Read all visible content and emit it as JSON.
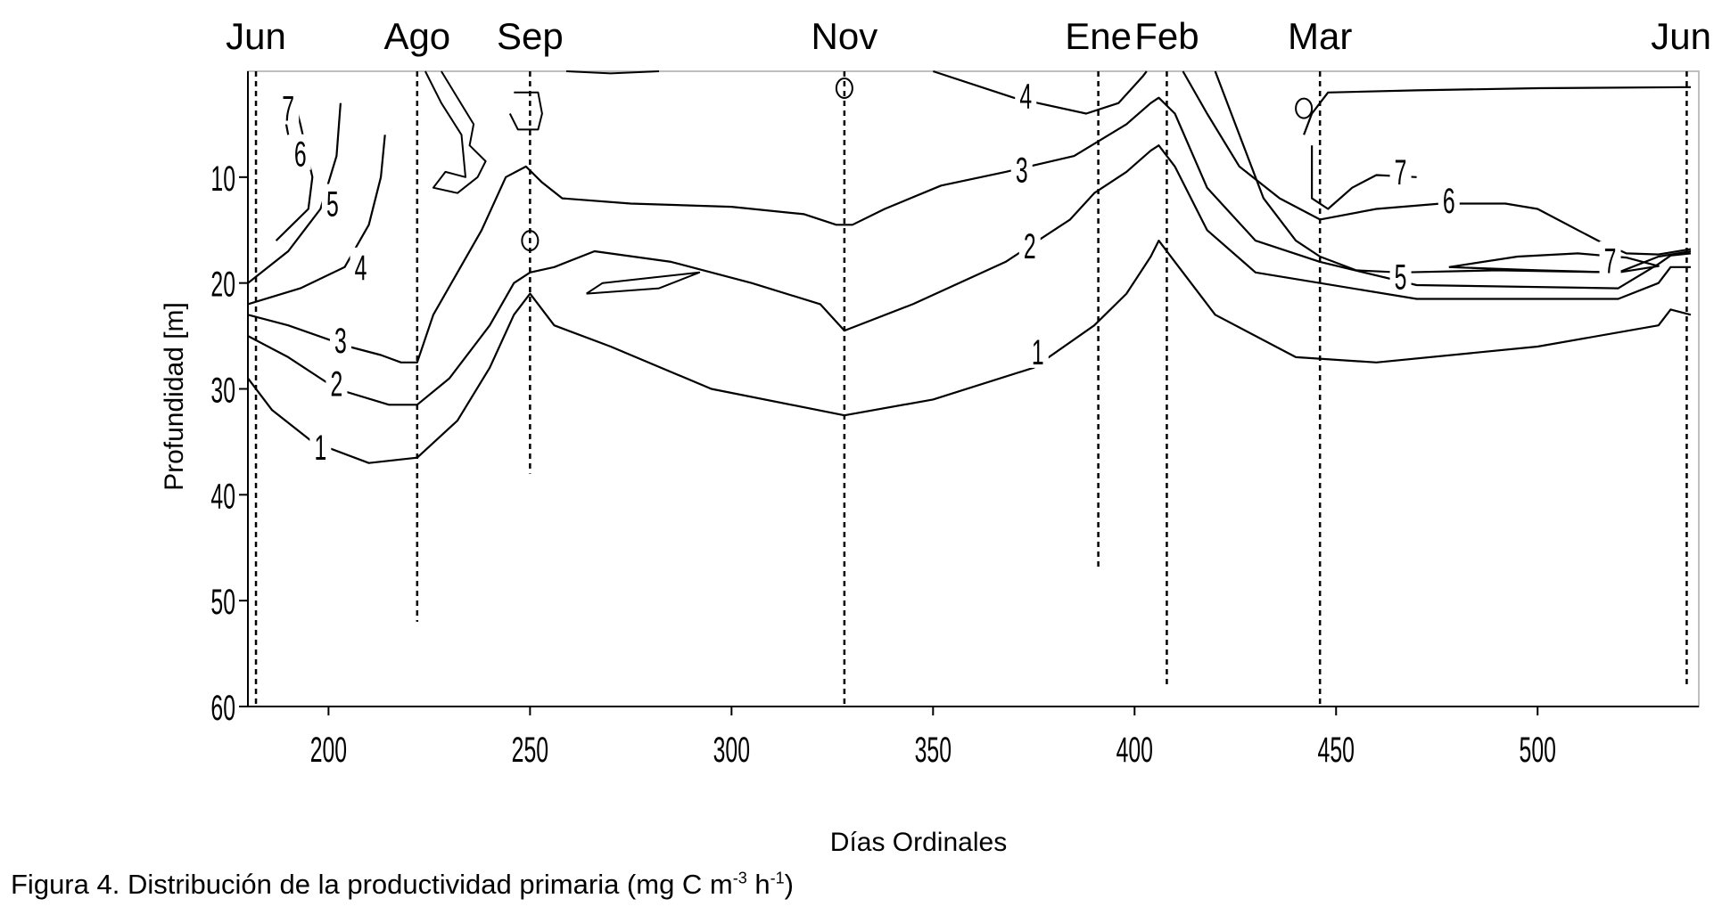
{
  "chart_data": {
    "type": "contour",
    "xlabel": "Días Ordinales",
    "ylabel": "Profundidad [m]",
    "xlim": [
      180,
      540
    ],
    "ylim": [
      60,
      0
    ],
    "y_reversed": true,
    "xticks": [
      200,
      250,
      300,
      350,
      400,
      450,
      500
    ],
    "yticks": [
      10,
      20,
      30,
      40,
      50,
      60
    ],
    "months": [
      {
        "label": "Jun",
        "day": 182,
        "depth_max": 60
      },
      {
        "label": "Ago",
        "day": 222,
        "depth_max": 52
      },
      {
        "label": "Sep",
        "day": 250,
        "depth_max": 38
      },
      {
        "label": "Nov",
        "day": 328,
        "depth_max": 60
      },
      {
        "label": "Ene",
        "day": 391,
        "depth_max": 47
      },
      {
        "label": "Feb",
        "day": 408,
        "depth_max": 58
      },
      {
        "label": "Mar",
        "day": 446,
        "depth_max": 60
      },
      {
        "label": "Jun",
        "day": 537,
        "depth_max": 58
      }
    ],
    "contours": [
      {
        "level": 1,
        "label_text": "1",
        "points": [
          [
            180,
            29
          ],
          [
            186,
            32
          ],
          [
            196,
            35
          ],
          [
            210,
            37
          ],
          [
            222,
            36.5
          ],
          [
            232,
            33
          ],
          [
            240,
            28
          ],
          [
            246,
            23
          ],
          [
            250,
            21
          ],
          [
            256,
            24
          ],
          [
            270,
            26
          ],
          [
            295,
            30
          ],
          [
            328,
            32.5
          ],
          [
            350,
            31
          ],
          [
            375,
            28
          ],
          [
            390,
            24
          ],
          [
            398,
            21
          ],
          [
            404,
            17.5
          ],
          [
            406,
            16
          ],
          [
            410,
            18
          ],
          [
            420,
            23
          ],
          [
            440,
            27
          ],
          [
            460,
            27.5
          ],
          [
            500,
            26
          ],
          [
            530,
            24
          ],
          [
            533,
            22.5
          ],
          [
            538,
            23
          ]
        ],
        "labels": [
          {
            "day": 198,
            "depth": 35.5
          },
          {
            "day": 376,
            "depth": 26.5
          }
        ]
      },
      {
        "level": 2,
        "label_text": "2",
        "points": [
          [
            180,
            25
          ],
          [
            190,
            27
          ],
          [
            202,
            30
          ],
          [
            215,
            31.5
          ],
          [
            222,
            31.5
          ],
          [
            230,
            29
          ],
          [
            240,
            24
          ],
          [
            246,
            20
          ],
          [
            250,
            19
          ],
          [
            256,
            18.5
          ],
          [
            266,
            17
          ],
          [
            285,
            18
          ],
          [
            305,
            20
          ],
          [
            322,
            22
          ],
          [
            328,
            24.5
          ],
          [
            345,
            22
          ],
          [
            368,
            18
          ],
          [
            384,
            14
          ],
          [
            390,
            11.5
          ],
          [
            398,
            9.5
          ],
          [
            404,
            7.5
          ],
          [
            406,
            7
          ],
          [
            410,
            9
          ],
          [
            418,
            15
          ],
          [
            430,
            19
          ],
          [
            446,
            20
          ],
          [
            470,
            21.5
          ],
          [
            520,
            21.5
          ],
          [
            530,
            20
          ],
          [
            533,
            18.5
          ],
          [
            538,
            18.5
          ]
        ],
        "labels": [
          {
            "day": 202,
            "depth": 29.5
          },
          {
            "day": 374,
            "depth": 16.5
          }
        ]
      },
      {
        "level": 3,
        "label_text": "3",
        "points": [
          [
            180,
            23
          ],
          [
            190,
            24
          ],
          [
            205,
            26
          ],
          [
            213,
            26.8
          ],
          [
            218,
            27.5
          ],
          [
            222,
            27.5
          ],
          [
            226,
            23
          ],
          [
            232,
            19
          ],
          [
            238,
            15
          ],
          [
            244,
            10
          ],
          [
            249,
            9
          ],
          [
            253,
            10.5
          ],
          [
            258,
            12
          ],
          [
            275,
            12.5
          ],
          [
            300,
            12.8
          ],
          [
            318,
            13.5
          ],
          [
            326,
            14.5
          ],
          [
            330,
            14.5
          ],
          [
            338,
            13
          ],
          [
            352,
            10.8
          ],
          [
            368,
            9.5
          ],
          [
            385,
            8
          ],
          [
            398,
            5
          ],
          [
            404,
            3
          ],
          [
            406,
            2.5
          ],
          [
            410,
            4
          ],
          [
            418,
            11
          ],
          [
            430,
            16
          ],
          [
            446,
            18
          ],
          [
            470,
            20.2
          ],
          [
            520,
            20.5
          ],
          [
            530,
            18.2
          ],
          [
            533,
            17.4
          ],
          [
            538,
            17.2
          ]
        ],
        "labels": [
          {
            "day": 203,
            "depth": 25.4
          },
          {
            "day": 372,
            "depth": 9.3
          }
        ]
      },
      {
        "level": 4,
        "label_text": "4",
        "points": [
          [
            180,
            22
          ],
          [
            193,
            20.5
          ],
          [
            204,
            18.5
          ],
          [
            210,
            14.5
          ],
          [
            213,
            10
          ],
          [
            214,
            6
          ]
        ],
        "labels": [
          {
            "day": 208,
            "depth": 18.5
          }
        ]
      },
      {
        "level": 4,
        "label_text": "4",
        "points": [
          [
            350,
            0
          ],
          [
            370,
            2.5
          ],
          [
            388,
            4
          ],
          [
            396,
            3
          ],
          [
            402,
            0.5
          ],
          [
            403,
            0
          ]
        ],
        "labels": [
          {
            "day": 373,
            "depth": 2.3
          }
        ]
      },
      {
        "level": 5,
        "label_text": "5",
        "points": [
          [
            180,
            20
          ],
          [
            190,
            17
          ],
          [
            198,
            13
          ],
          [
            202,
            8
          ],
          [
            203,
            3
          ]
        ],
        "labels": [
          {
            "day": 201,
            "depth": 12.5
          }
        ]
      },
      {
        "level": 5,
        "label_text": "5",
        "points": [
          [
            420,
            0
          ],
          [
            426,
            6
          ],
          [
            432,
            12
          ],
          [
            440,
            16
          ],
          [
            446,
            17.5
          ],
          [
            455,
            18.8
          ],
          [
            466,
            19
          ],
          [
            490,
            18.8
          ],
          [
            520,
            19
          ],
          [
            530,
            17.5
          ],
          [
            538,
            17
          ]
        ],
        "labels": [
          {
            "day": 466,
            "depth": 19.4
          }
        ]
      },
      {
        "level": 6,
        "label_text": "6",
        "points": [
          [
            187,
            16
          ],
          [
            195,
            13
          ],
          [
            196,
            10
          ],
          [
            193,
            5
          ],
          [
            191,
            2
          ]
        ],
        "labels": [
          {
            "day": 193,
            "depth": 7.8
          }
        ]
      },
      {
        "level": 6,
        "label_text": "6",
        "points": [
          [
            412,
            0
          ],
          [
            418,
            4
          ],
          [
            426,
            9
          ],
          [
            436,
            12
          ],
          [
            446,
            14
          ],
          [
            460,
            13
          ],
          [
            476,
            12.5
          ],
          [
            492,
            12.5
          ],
          [
            500,
            13
          ],
          [
            510,
            15
          ],
          [
            515,
            16
          ],
          [
            522,
            17.2
          ],
          [
            530,
            17.3
          ],
          [
            538,
            16.8
          ]
        ],
        "labels": [
          {
            "day": 478,
            "depth": 12.2
          }
        ]
      },
      {
        "level": 7,
        "label_text": "7",
        "points": [
          [
            188,
            2
          ],
          [
            190,
            6
          ]
        ],
        "labels": [
          {
            "day": 190,
            "depth": 3.5
          }
        ]
      },
      {
        "level": 7,
        "label_text": "7",
        "points": [
          [
            442,
            6
          ],
          [
            444,
            4
          ],
          [
            448,
            2
          ],
          [
            470,
            1.8
          ],
          [
            500,
            1.6
          ],
          [
            538,
            1.5
          ]
        ],
        "labels": [
          {
            "day": 466,
            "depth": 9.5
          }
        ]
      },
      {
        "level": 7,
        "label_text": "7",
        "points": [
          [
            444,
            7
          ],
          [
            444,
            12
          ],
          [
            448,
            13
          ],
          [
            454,
            11
          ],
          [
            460,
            9.8
          ],
          [
            470,
            10
          ]
        ],
        "labels": []
      },
      {
        "level": 7,
        "label_text": "7",
        "points": [
          [
            478,
            18.5
          ],
          [
            495,
            17.5
          ],
          [
            510,
            17.2
          ],
          [
            522,
            17.6
          ],
          [
            530,
            18.4
          ],
          [
            520,
            19
          ],
          [
            500,
            18.8
          ],
          [
            478,
            18.5
          ]
        ],
        "labels": [
          {
            "day": 518,
            "depth": 17.9
          }
        ]
      }
    ],
    "small_features": [
      {
        "kind": "loop",
        "points": [
          [
            228,
            0
          ],
          [
            236,
            5
          ],
          [
            235,
            7
          ],
          [
            239,
            8.5
          ],
          [
            237,
            10
          ],
          [
            232,
            11.5
          ],
          [
            226,
            11
          ],
          [
            229,
            9.5
          ],
          [
            234,
            10
          ],
          [
            233,
            6
          ],
          [
            228,
            3
          ],
          [
            224,
            0
          ]
        ]
      },
      {
        "kind": "loop",
        "points": [
          [
            246,
            2
          ],
          [
            252,
            2
          ],
          [
            253,
            4
          ],
          [
            252,
            5.5
          ],
          [
            247,
            5.5
          ],
          [
            245,
            4
          ]
        ]
      },
      {
        "kind": "loop",
        "points": [
          [
            259,
            0
          ],
          [
            270,
            0.2
          ],
          [
            282,
            0
          ]
        ]
      },
      {
        "kind": "circle",
        "day": 328,
        "depth": 1.6
      },
      {
        "kind": "circle",
        "day": 250,
        "depth": 16
      },
      {
        "kind": "circle",
        "day": 442,
        "depth": 3.5
      },
      {
        "kind": "loop",
        "points": [
          [
            264,
            21
          ],
          [
            268,
            20
          ],
          [
            280,
            19.5
          ],
          [
            292,
            19
          ],
          [
            282,
            20.5
          ],
          [
            264,
            21
          ]
        ]
      }
    ]
  },
  "caption": {
    "prefix": "Figura 4. Distribución de la productividad primaria (mg C m",
    "exp1": "-3",
    "middle": " h",
    "exp2": "-1",
    "suffix": ")"
  }
}
